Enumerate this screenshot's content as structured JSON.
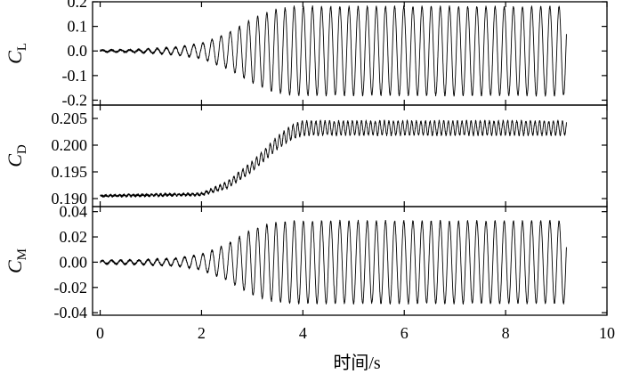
{
  "chart_data": {
    "type": "line",
    "xlabel": "时间/s",
    "x_ticks": [
      0,
      2,
      4,
      6,
      8,
      10
    ],
    "x_tick_labels": [
      "0",
      "2",
      "4",
      "6",
      "8",
      "10"
    ],
    "xlim": [
      -0.15,
      10
    ],
    "panels": [
      {
        "ylabel_main": "C",
        "ylabel_sub": "L",
        "ylim": [
          -0.22,
          0.2
        ],
        "y_ticks": [
          0.2,
          0.1,
          0.0,
          -0.1,
          -0.2
        ],
        "y_tick_labels": [
          "0.2",
          "0.1",
          "0.0",
          "-0.1",
          "-0.2"
        ],
        "signal": {
          "t_start": 0.0,
          "t_end": 9.2,
          "mean": 0.0,
          "frequency": 5.55,
          "amplitude_envelope": [
            [
              0.0,
              0.003
            ],
            [
              0.8,
              0.006
            ],
            [
              1.5,
              0.015
            ],
            [
              2.0,
              0.03
            ],
            [
              2.5,
              0.07
            ],
            [
              3.0,
              0.13
            ],
            [
              3.4,
              0.165
            ],
            [
              3.8,
              0.18
            ],
            [
              9.2,
              0.18
            ]
          ],
          "noise": 0.004
        }
      },
      {
        "ylabel_main": "C",
        "ylabel_sub": "D",
        "ylim": [
          0.1885,
          0.2075
        ],
        "y_ticks": [
          0.205,
          0.2,
          0.195,
          0.19
        ],
        "y_tick_labels": [
          "0.205",
          "0.200",
          "0.195",
          "0.190"
        ],
        "signal": {
          "t_start": 0.0,
          "t_end": 9.2,
          "mean_curve": [
            [
              0.0,
              0.1905
            ],
            [
              2.0,
              0.1908
            ],
            [
              2.5,
              0.1925
            ],
            [
              3.0,
              0.196
            ],
            [
              3.5,
              0.2005
            ],
            [
              3.8,
              0.2025
            ],
            [
              4.0,
              0.2032
            ],
            [
              9.2,
              0.2032
            ]
          ],
          "frequency": 11.1,
          "amplitude_envelope": [
            [
              0.0,
              0.0001
            ],
            [
              2.0,
              0.0002
            ],
            [
              2.5,
              0.0006
            ],
            [
              3.0,
              0.0009
            ],
            [
              3.8,
              0.0013
            ],
            [
              9.2,
              0.0013
            ]
          ],
          "noise": 0.0002
        }
      },
      {
        "ylabel_main": "C",
        "ylabel_sub": "M",
        "ylim": [
          -0.042,
          0.044
        ],
        "y_ticks": [
          0.04,
          0.02,
          0.0,
          -0.02,
          -0.04
        ],
        "y_tick_labels": [
          "0.04",
          "0.02",
          "0.00",
          "-0.02",
          "-0.04"
        ],
        "signal": {
          "t_start": 0.0,
          "t_end": 9.2,
          "mean": 0.0,
          "frequency": 5.55,
          "amplitude_envelope": [
            [
              0.0,
              0.0012
            ],
            [
              0.8,
              0.0018
            ],
            [
              1.5,
              0.003
            ],
            [
              2.0,
              0.006
            ],
            [
              2.5,
              0.014
            ],
            [
              3.0,
              0.026
            ],
            [
              3.4,
              0.031
            ],
            [
              3.8,
              0.0325
            ],
            [
              9.2,
              0.0325
            ]
          ],
          "noise": 0.0008
        }
      }
    ]
  }
}
